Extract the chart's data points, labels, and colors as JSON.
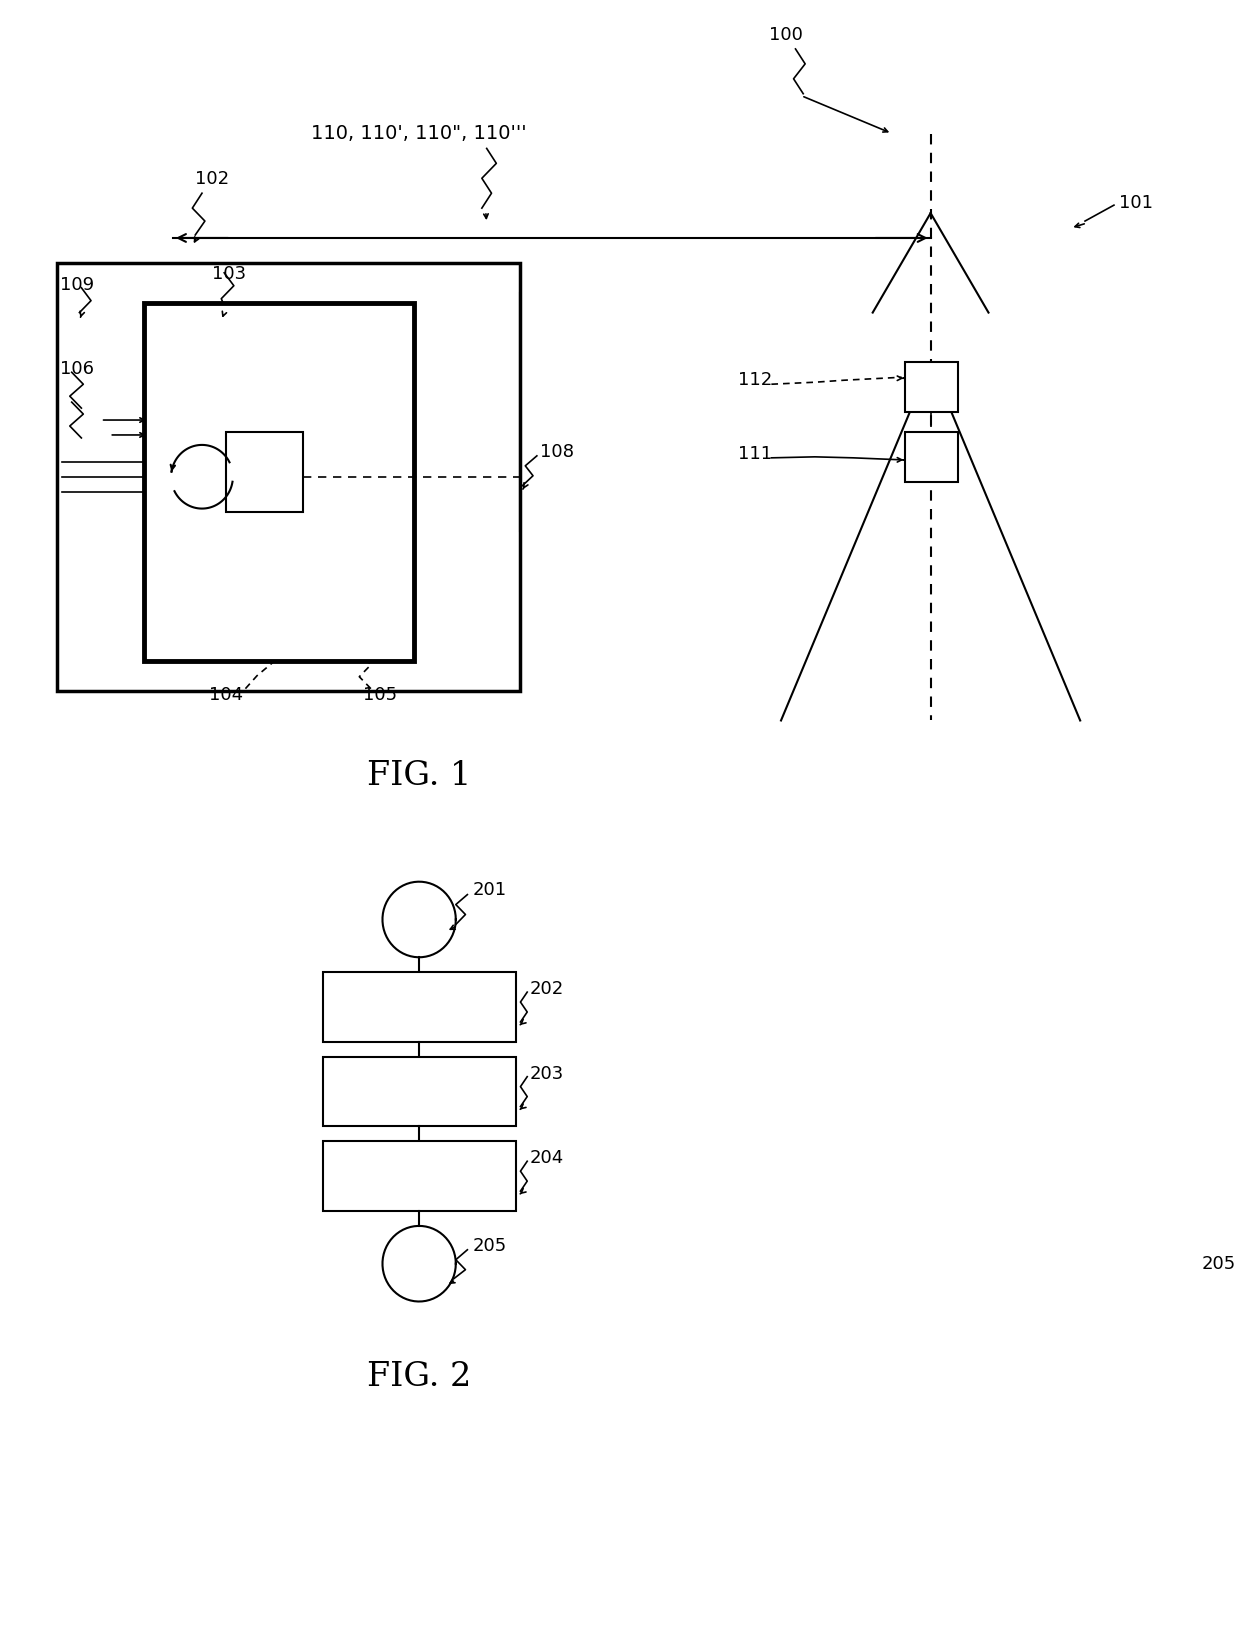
{
  "fig_width": 12.4,
  "fig_height": 16.34,
  "bg_color": "#ffffff",
  "fig1_label": "FIG. 1",
  "fig2_label": "FIG. 2",
  "fig_label_fontsize": 24,
  "ref_fontsize": 13
}
